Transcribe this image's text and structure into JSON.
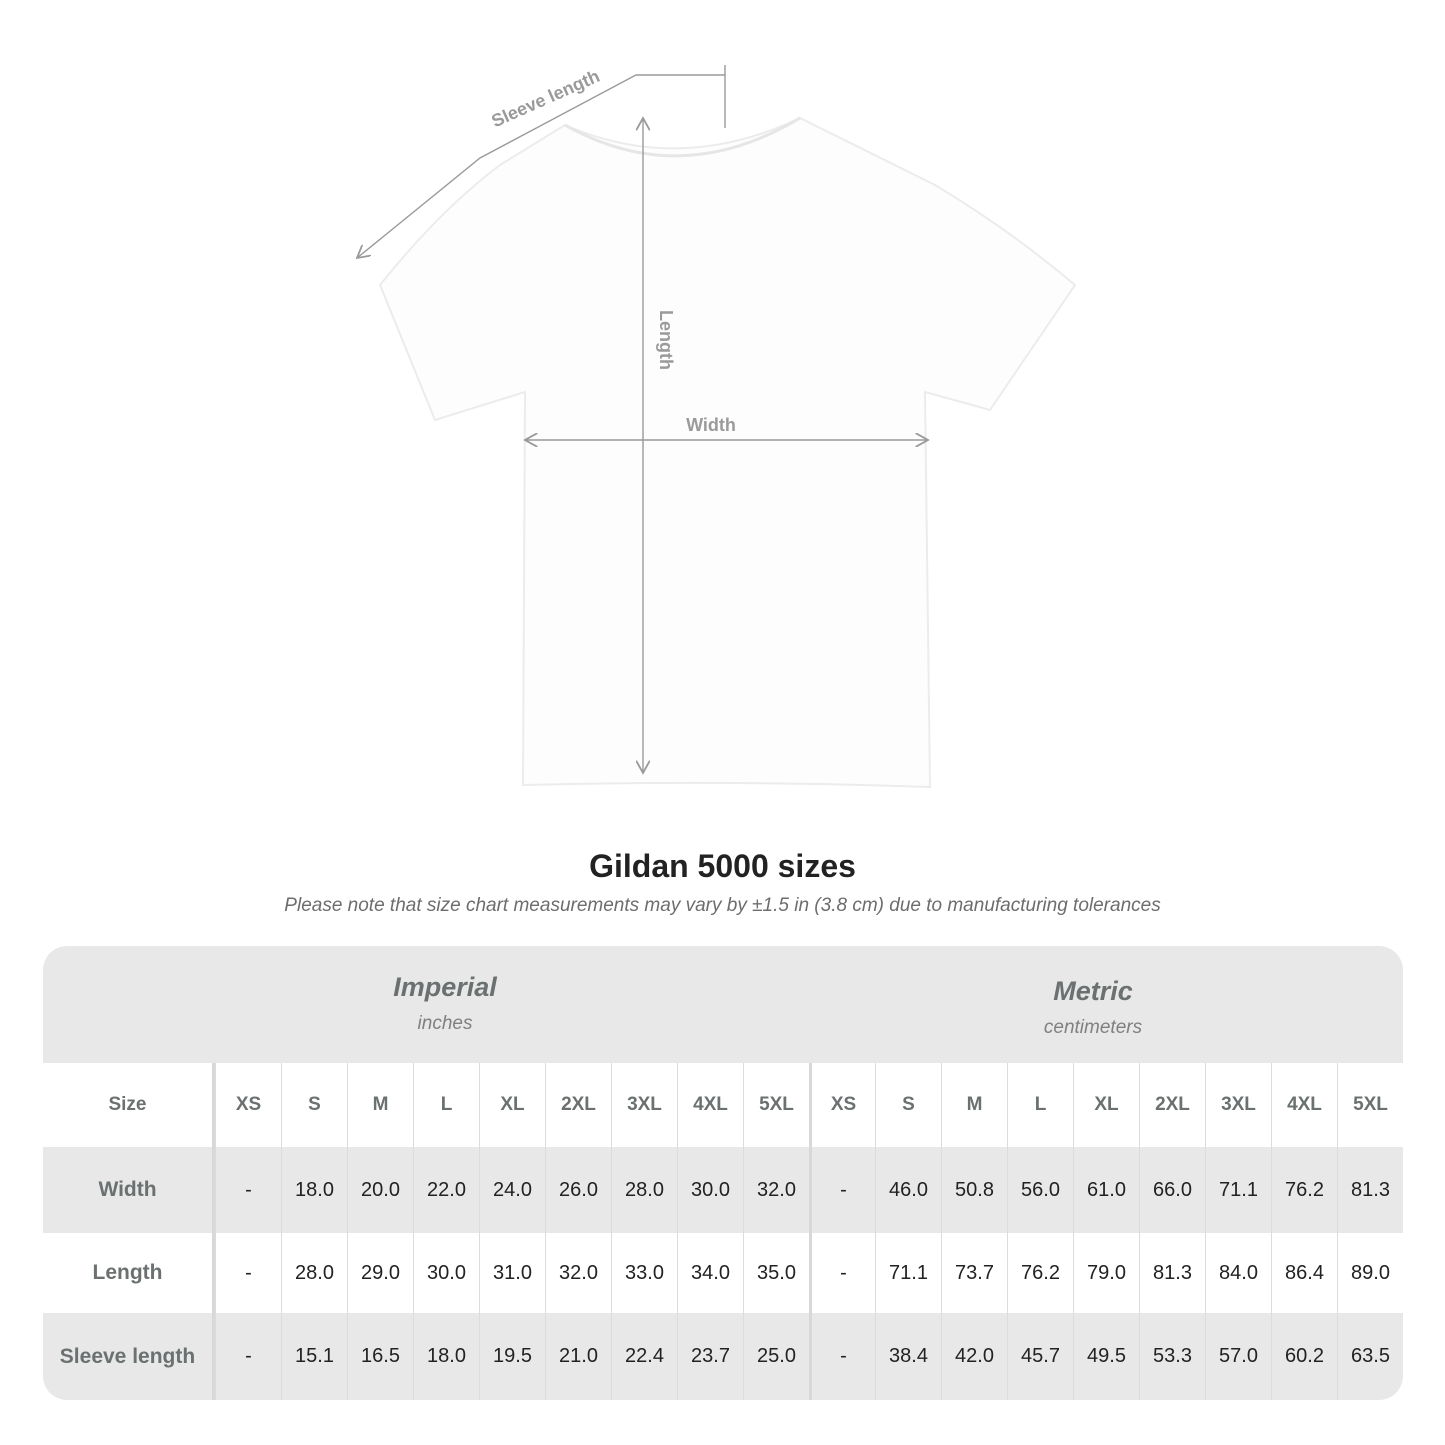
{
  "diagram": {
    "labels": {
      "sleeve": "Sleeve length",
      "length": "Length",
      "width": "Width"
    },
    "line_color": "#9a9a9a"
  },
  "title": "Gildan 5000 sizes",
  "subtitle": "Please note that size chart measurements may vary by ±1.5 in (3.8 cm) due to manufacturing tolerances",
  "table": {
    "imperial": {
      "name": "Imperial",
      "unit": "inches"
    },
    "metric": {
      "name": "Metric",
      "unit": "centimeters"
    },
    "size_label": "Size",
    "sizes": [
      "XS",
      "S",
      "M",
      "L",
      "XL",
      "2XL",
      "3XL",
      "4XL",
      "5XL"
    ],
    "rows": [
      {
        "label": "Width",
        "imperial": [
          "-",
          "18.0",
          "20.0",
          "22.0",
          "24.0",
          "26.0",
          "28.0",
          "30.0",
          "32.0"
        ],
        "metric": [
          "-",
          "46.0",
          "50.8",
          "56.0",
          "61.0",
          "66.0",
          "71.1",
          "76.2",
          "81.3"
        ]
      },
      {
        "label": "Length",
        "imperial": [
          "-",
          "28.0",
          "29.0",
          "30.0",
          "31.0",
          "32.0",
          "33.0",
          "34.0",
          "35.0"
        ],
        "metric": [
          "-",
          "71.1",
          "73.7",
          "76.2",
          "79.0",
          "81.3",
          "84.0",
          "86.4",
          "89.0"
        ]
      },
      {
        "label": "Sleeve length",
        "imperial": [
          "-",
          "15.1",
          "16.5",
          "18.0",
          "19.5",
          "21.0",
          "22.4",
          "23.7",
          "25.0"
        ],
        "metric": [
          "-",
          "38.4",
          "42.0",
          "45.7",
          "49.5",
          "53.3",
          "57.0",
          "60.2",
          "63.5"
        ]
      }
    ]
  }
}
